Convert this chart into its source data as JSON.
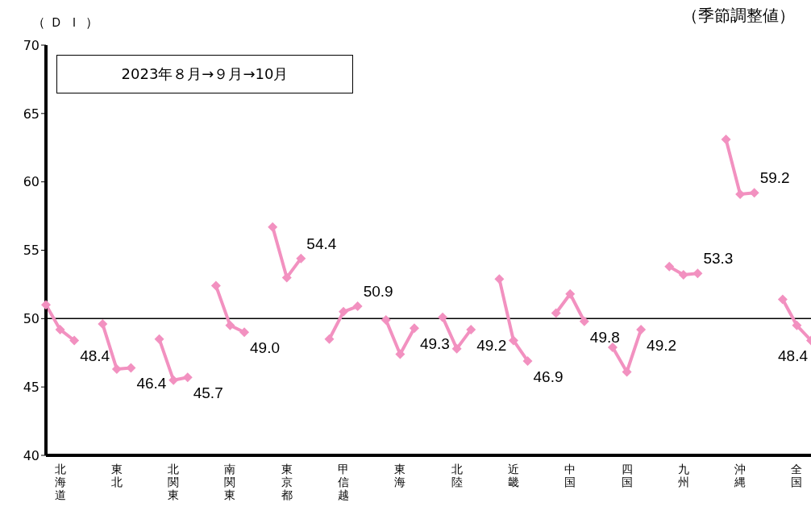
{
  "chart_data": {
    "type": "line",
    "subtitle": "（季節調整値）",
    "ylabel": "（ＤＩ）",
    "annotations": [
      "2023年８月→９月→10月"
    ],
    "categories": [
      null,
      "北海道",
      null,
      null,
      null,
      "東北",
      null,
      null,
      null,
      "北関東",
      null,
      null,
      null,
      "南関東",
      null,
      null,
      null,
      "東京都",
      null,
      null,
      null,
      "甲信越",
      null,
      null,
      null,
      "東海",
      null,
      null,
      null,
      "北陸",
      null,
      null,
      null,
      "近畿",
      null,
      null,
      null,
      "中国",
      null,
      null,
      null,
      "四国",
      null,
      null,
      null,
      "九州",
      null,
      null,
      null,
      "沖縄",
      null,
      null,
      null,
      "全国",
      null
    ],
    "series": [
      {
        "color": "#f291c0",
        "values": [
          51.0,
          49.2,
          48.4,
          null,
          49.6,
          46.3,
          46.4,
          null,
          48.5,
          45.5,
          45.7,
          null,
          52.4,
          49.5,
          49.0,
          null,
          56.7,
          53.0,
          54.4,
          null,
          48.5,
          50.5,
          50.9,
          null,
          49.9,
          47.4,
          49.3,
          null,
          50.1,
          47.8,
          49.2,
          null,
          52.9,
          48.4,
          46.9,
          null,
          50.4,
          51.8,
          49.8,
          null,
          47.9,
          46.1,
          49.2,
          null,
          53.8,
          53.2,
          53.3,
          null,
          63.1,
          59.1,
          59.2,
          null,
          51.4,
          49.5,
          48.4
        ],
        "value_labels": [
          null,
          null,
          "48.4",
          null,
          null,
          null,
          "46.4",
          null,
          null,
          null,
          "45.7",
          null,
          null,
          null,
          "49.0",
          null,
          null,
          null,
          "54.4",
          null,
          null,
          null,
          "50.9",
          null,
          null,
          null,
          "49.3",
          null,
          null,
          null,
          "49.2",
          null,
          null,
          null,
          "46.9",
          null,
          null,
          null,
          "49.8",
          null,
          null,
          null,
          "49.2",
          null,
          null,
          null,
          "53.3",
          null,
          null,
          null,
          "59.2",
          null,
          null,
          null,
          "48.4"
        ]
      }
    ],
    "ylim": [
      40,
      70
    ],
    "yticks": [
      40,
      45,
      50,
      55,
      60,
      65,
      70
    ],
    "ref_lines": [
      {
        "axis": "y",
        "value": 50,
        "color": "#000000"
      }
    ],
    "grid": false,
    "marker": "diamond",
    "line_style": "solid"
  }
}
